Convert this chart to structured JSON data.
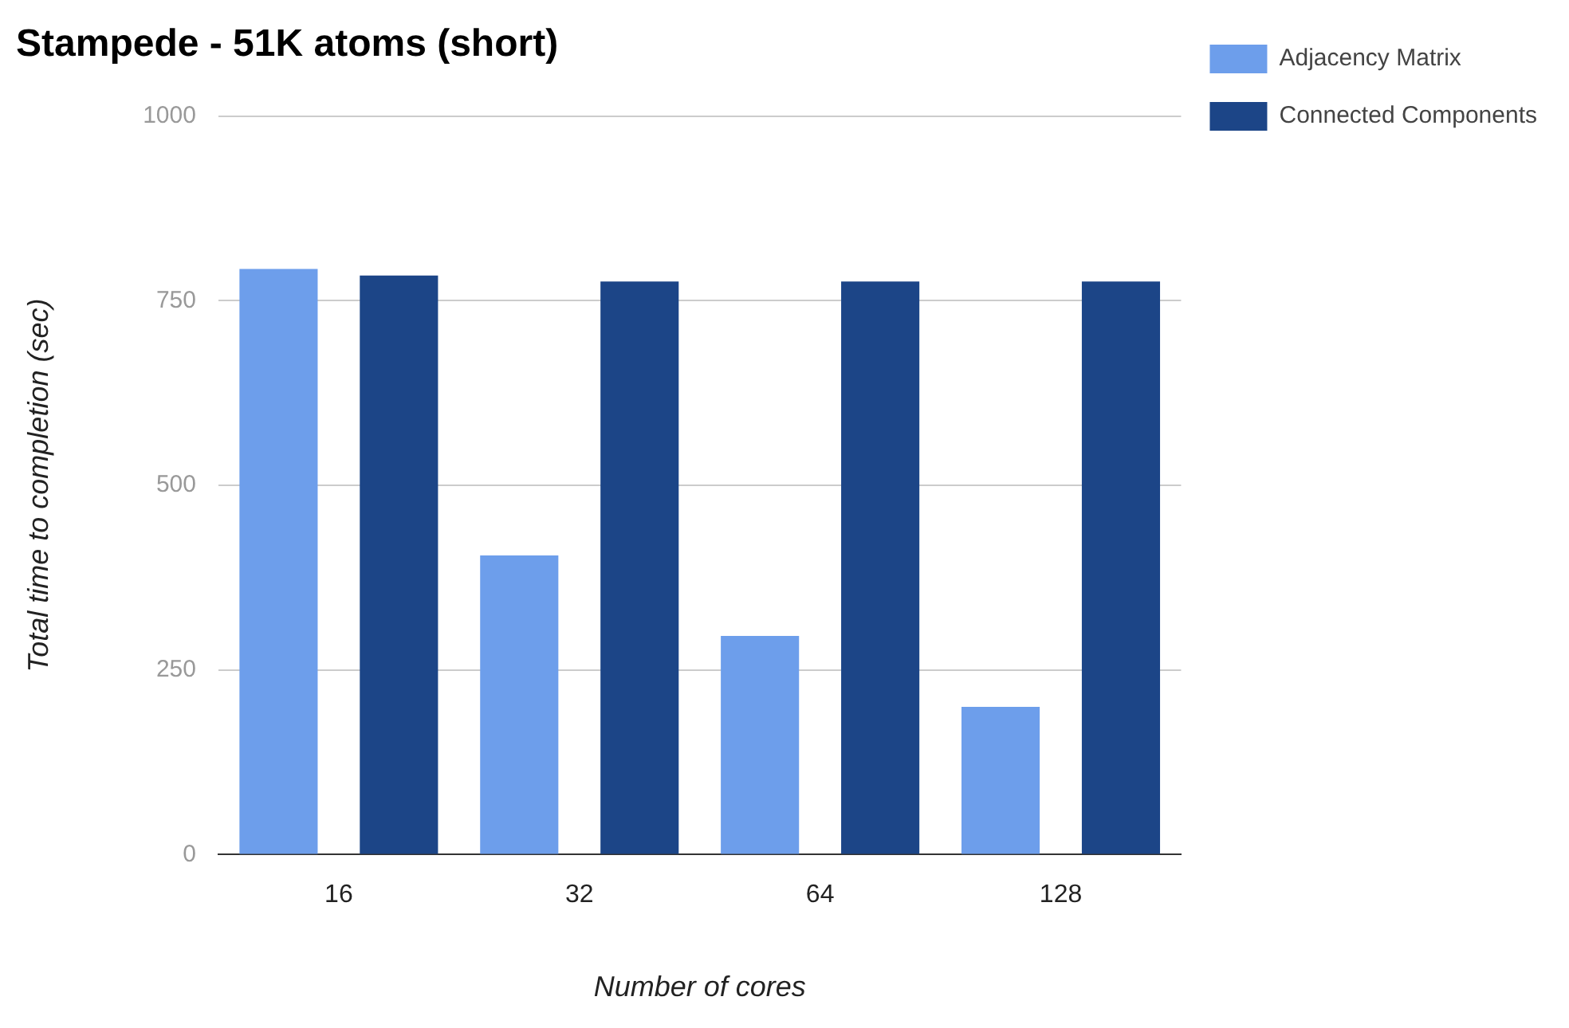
{
  "chart_data": {
    "type": "bar",
    "title": "Stampede - 51K atoms (short)",
    "xlabel": "Number of cores",
    "ylabel": "Total time to completion (sec)",
    "categories": [
      "16",
      "32",
      "64",
      "128"
    ],
    "series": [
      {
        "name": "Adjacency Matrix",
        "color": "#6d9eeb",
        "values": [
          793,
          405,
          296,
          200
        ]
      },
      {
        "name": "Connected Components",
        "color": "#1c4587",
        "values": [
          784,
          776,
          776,
          776
        ]
      }
    ],
    "ylim": [
      0,
      1000
    ],
    "yticks": [
      0,
      250,
      500,
      750,
      1000
    ],
    "grid": "y",
    "legend": "top right"
  }
}
